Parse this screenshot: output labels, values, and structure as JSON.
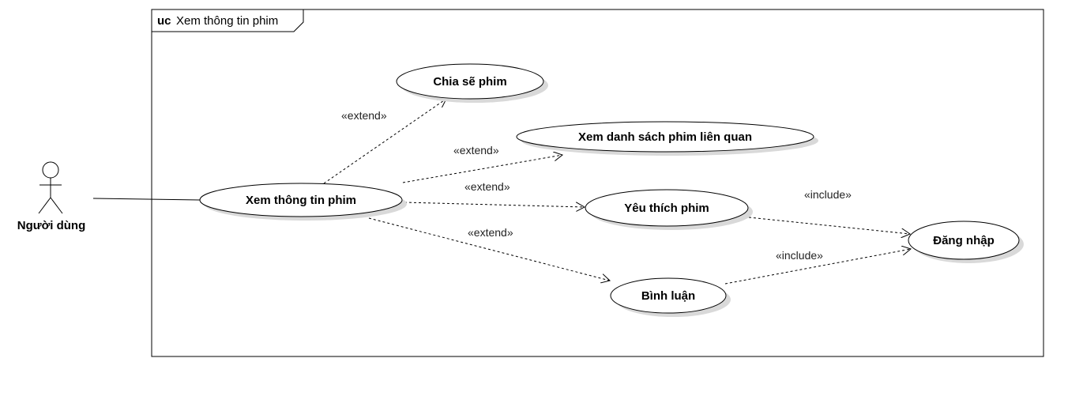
{
  "frame": {
    "keyword": "uc",
    "title": "Xem thông tin phim"
  },
  "actor": {
    "label": "Người dùng"
  },
  "use_cases": {
    "main": "Xem thông tin phim",
    "share": "Chia sẽ phim",
    "related": "Xem danh sách phim liên quan",
    "favorite": "Yêu thích phim",
    "comment": "Bình luận",
    "login": "Đăng nhập"
  },
  "relations": {
    "extend_share": "«extend»",
    "extend_related": "«extend»",
    "extend_favorite": "«extend»",
    "extend_comment": "«extend»",
    "include_favorite_login": "«include»",
    "include_comment_login": "«include»"
  },
  "colors": {
    "line": "#000000",
    "shadow": "#d9d9d9",
    "background": "#ffffff"
  }
}
